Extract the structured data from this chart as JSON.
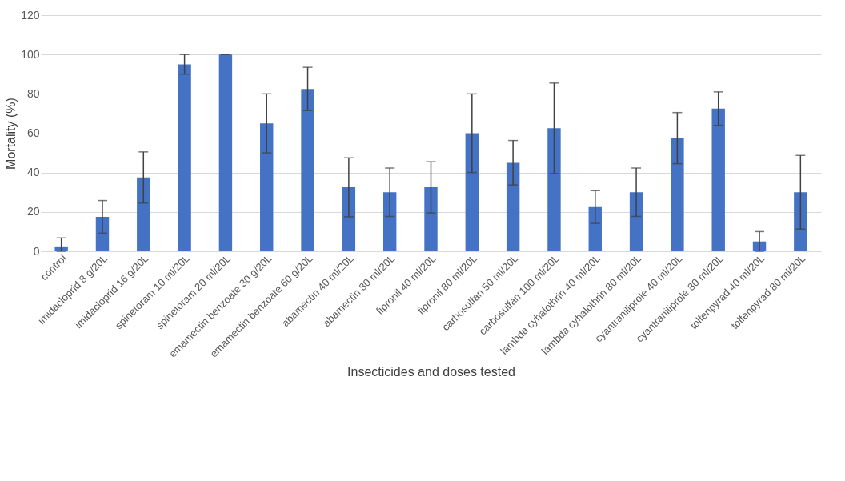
{
  "chart_data": {
    "type": "bar",
    "xlabel": "Insecticides and doses tested",
    "ylabel": "Mortality (%)",
    "categories": [
      "control",
      "imidacloprid 8 g/20L",
      "imidacloprid 16 g/20L",
      "spinetoram 10 ml/20L",
      "spinetoram 20 ml/20L",
      "emamectin benzoate 30 g/20L",
      "emamectin benzoate 60 g/20L",
      "abamectin 40 ml/20L",
      "abamectin 80 ml/20L",
      "fipronil 40 ml/20L",
      "fipronil 80 ml/20L",
      "carbosulfan 50 ml/20L",
      "carbosulfan 100 ml/20L",
      "lambda cyhalothrin 40 ml/20L",
      "lambda cyhalothrin 80 ml/20L",
      "cyantraniliprole 40 ml/20L",
      "cyantraniliprole 80 ml/20L",
      "tolfenpyrad 40 ml/20L",
      "tolfenpyrad 80 ml/20L"
    ],
    "values": [
      2.5,
      17.5,
      37.5,
      95,
      100,
      65,
      82.5,
      32.5,
      30,
      32.5,
      60,
      45,
      62.5,
      22.5,
      30,
      57.5,
      72.5,
      5,
      30
    ],
    "errors": [
      [
        0,
        6.8
      ],
      8.3,
      13,
      5,
      0,
      15,
      11,
      15,
      12.3,
      13,
      20,
      11.3,
      23,
      8.3,
      12.3,
      13,
      8.5,
      5,
      18.7
    ],
    "color": "#4472c4",
    "ylim": [
      0,
      120
    ],
    "yticks": [
      0,
      20,
      40,
      60,
      80,
      100,
      120
    ],
    "grid": "y"
  }
}
